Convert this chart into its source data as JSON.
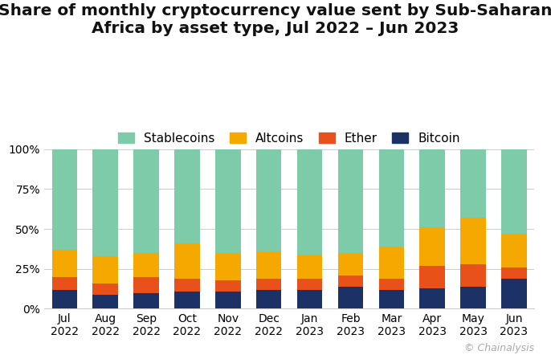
{
  "months": [
    "Jul\n2022",
    "Aug\n2022",
    "Sep\n2022",
    "Oct\n2022",
    "Nov\n2022",
    "Dec\n2022",
    "Jan\n2023",
    "Feb\n2023",
    "Mar\n2023",
    "Apr\n2023",
    "May\n2023",
    "Jun\n2023"
  ],
  "bitcoin": [
    12,
    9,
    10,
    11,
    11,
    12,
    12,
    14,
    12,
    13,
    14,
    19
  ],
  "ether": [
    8,
    7,
    10,
    8,
    7,
    7,
    7,
    7,
    7,
    14,
    14,
    7
  ],
  "altcoins": [
    17,
    17,
    15,
    22,
    17,
    17,
    15,
    14,
    20,
    24,
    29,
    21
  ],
  "stablecoins": [
    63,
    67,
    65,
    59,
    65,
    64,
    66,
    65,
    61,
    49,
    43,
    53
  ],
  "colors": {
    "bitcoin": "#1c3166",
    "ether": "#e8521a",
    "altcoins": "#f5a800",
    "stablecoins": "#7ecbaa"
  },
  "title": "Share of monthly cryptocurrency value sent by Sub-Saharan\nAfrica by asset type, Jul 2022 – Jun 2023",
  "yticks": [
    0,
    25,
    50,
    75,
    100
  ],
  "watermark": "© Chainalysis",
  "background_color": "#ffffff",
  "title_fontsize": 14.5,
  "legend_fontsize": 11,
  "tick_fontsize": 10
}
